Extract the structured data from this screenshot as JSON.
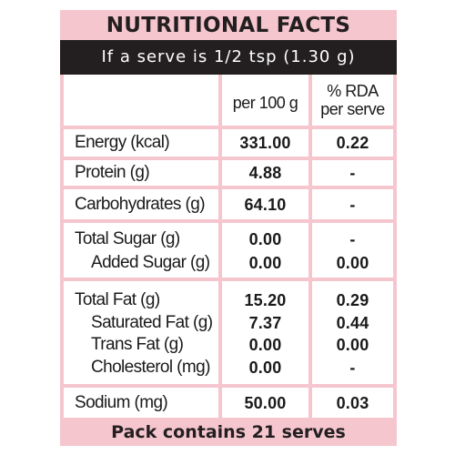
{
  "title": "NUTRITIONAL FACTS",
  "serve_line": "If a serve is 1/2 tsp (1.30 g)",
  "headers": {
    "per100": "per 100 g",
    "rda_line1": "% RDA",
    "rda_line2": "per serve"
  },
  "rows": [
    {
      "label": "Energy (kcal)",
      "per100": "331.00",
      "rda": "0.22"
    },
    {
      "label": "Protein (g)",
      "per100": "4.88",
      "rda": "-"
    },
    {
      "label": "Carbohydrates (g)",
      "per100": "64.10",
      "rda": "-"
    },
    {
      "label": "Total Sugar (g)",
      "per100": "0.00",
      "rda": "-"
    },
    {
      "label": "Added Sugar (g)",
      "per100": "0.00",
      "rda": "0.00"
    },
    {
      "label": "Total Fat (g)",
      "per100": "15.20",
      "rda": "0.29"
    },
    {
      "label": "Saturated Fat (g)",
      "per100": "7.37",
      "rda": "0.44"
    },
    {
      "label": "Trans Fat (g)",
      "per100": "0.00",
      "rda": "0.00"
    },
    {
      "label": "Cholesterol (mg)",
      "per100": "0.00",
      "rda": "-"
    },
    {
      "label": "Sodium (mg)",
      "per100": "50.00",
      "rda": "0.03"
    }
  ],
  "footer": "Pack contains 21 serves",
  "colors": {
    "panel_pink": "#f6c6cf",
    "bar_dark": "#231f20",
    "cell_white": "#ffffff"
  }
}
